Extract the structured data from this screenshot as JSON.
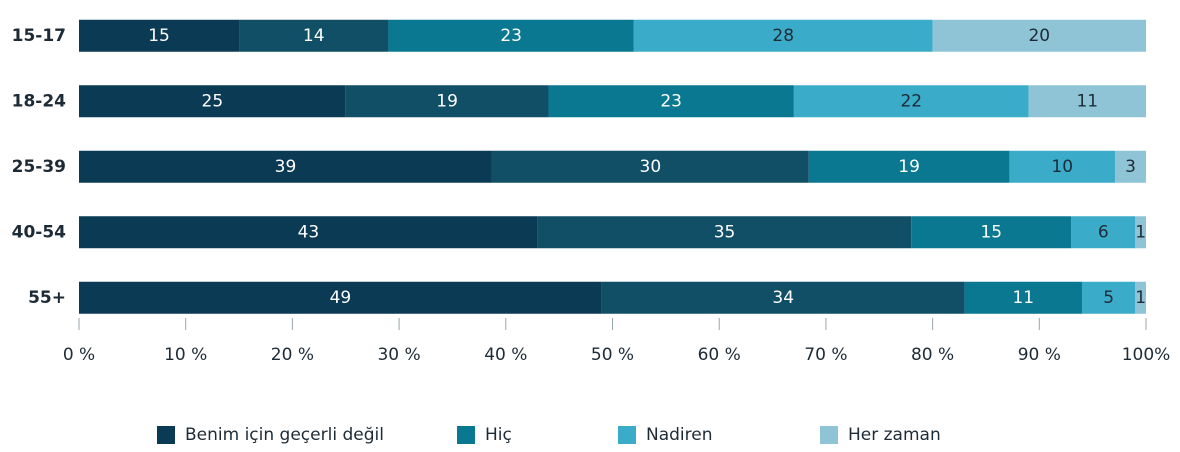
{
  "chart_data": {
    "type": "stacked_bar_horizontal",
    "categories": [
      "15-17",
      "18-24",
      "25-39",
      "40-54",
      "55+"
    ],
    "series": [
      {
        "name": "Benim için geçerli değil",
        "color": "#0b3a55",
        "values": [
          15,
          25,
          38.7,
          43,
          49
        ],
        "value_labels": [
          "15",
          "25",
          "39",
          "43",
          "49"
        ]
      },
      {
        "name": null,
        "color": "#114f67",
        "values": [
          14,
          19,
          29.7,
          35,
          34
        ],
        "value_labels": [
          "14",
          "19",
          "30",
          "35",
          "34"
        ]
      },
      {
        "name": "Hiç",
        "color": "#0a7891",
        "values": [
          23,
          23,
          18.8,
          15,
          11
        ],
        "value_labels": [
          "23",
          "23",
          "19",
          "15",
          "11"
        ]
      },
      {
        "name": "Nadiren",
        "color": "#3aabc8",
        "values": [
          28,
          22,
          9.9,
          6,
          5
        ],
        "value_labels": [
          "28",
          "22",
          "10",
          "6",
          "5"
        ]
      },
      {
        "name": "Her zaman",
        "color": "#8fc4d6",
        "values": [
          20,
          11,
          2.9,
          1,
          1
        ],
        "value_labels": [
          "20",
          "11",
          "3",
          "1",
          "1"
        ]
      }
    ],
    "xlim": [
      0,
      100
    ],
    "xticks": [
      {
        "value": 0,
        "label": "0 %"
      },
      {
        "value": 10,
        "label": "10 %"
      },
      {
        "value": 20,
        "label": "20 %"
      },
      {
        "value": 30,
        "label": "30 %"
      },
      {
        "value": 40,
        "label": "40 %"
      },
      {
        "value": 50,
        "label": "50 %"
      },
      {
        "value": 60,
        "label": "60 %"
      },
      {
        "value": 70,
        "label": "70 %"
      },
      {
        "value": 80,
        "label": "80 %"
      },
      {
        "value": 90,
        "label": "90 %"
      },
      {
        "value": 100,
        "label": "100%"
      }
    ],
    "legend": "bottom"
  }
}
